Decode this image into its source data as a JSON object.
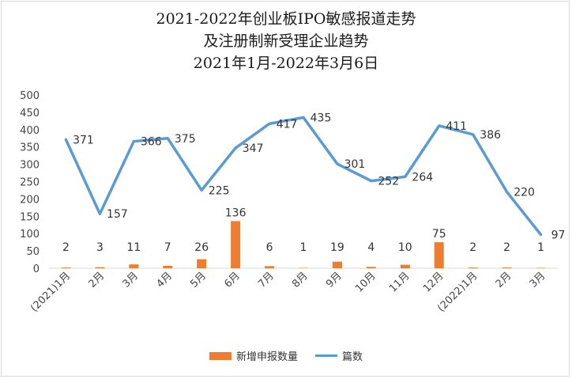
{
  "chart_data": {
    "type": "bar+line",
    "title_lines": [
      "2021-2022年创业板IPO敏感报道走势",
      "及注册制新受理企业趋势",
      "2021年1月-2022年3月6日"
    ],
    "categories": [
      "(2021)1月",
      "2月",
      "3月",
      "4月",
      "5月",
      "6月",
      "7月",
      "8月",
      "9月",
      "10月",
      "11月",
      "12月",
      "(2022)1月",
      "2月",
      "3月"
    ],
    "series": [
      {
        "name": "新增申报数量",
        "type": "bar",
        "color": "#ed7d31",
        "values": [
          2,
          3,
          11,
          7,
          26,
          136,
          6,
          1,
          19,
          4,
          10,
          75,
          2,
          2,
          1
        ]
      },
      {
        "name": "篇数",
        "type": "line",
        "color": "#5b9bd5",
        "values": [
          371,
          157,
          366,
          375,
          225,
          347,
          417,
          435,
          301,
          252,
          264,
          411,
          386,
          220,
          97
        ]
      }
    ],
    "ylim": [
      0,
      500
    ],
    "yticks": [
      0,
      50,
      100,
      150,
      200,
      250,
      300,
      350,
      400,
      450,
      500
    ],
    "grid": false,
    "legend_position": "bottom"
  }
}
